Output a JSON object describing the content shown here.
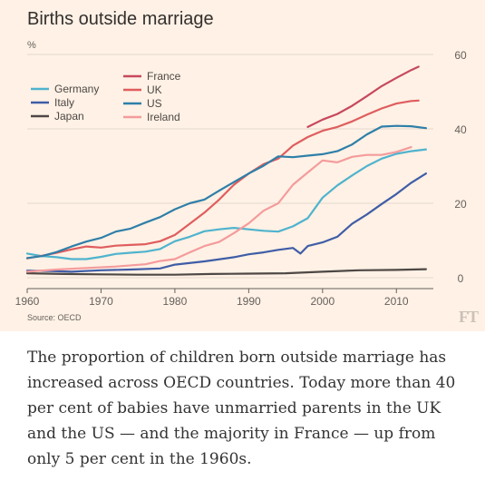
{
  "header": {
    "title": "Births outside marriage",
    "unit": "%"
  },
  "footer": {
    "source": "Source: OECD",
    "logo": "FT"
  },
  "caption": "The proportion of children born outside marriage has increased across OECD countries. Today more than 40 per cent of babies have unmarried parents in the UK and the US — and the majority in France — up from only 5 per cent in the 1960s.",
  "chart_data": {
    "type": "line",
    "title": "Births outside marriage",
    "ylabel": "%",
    "xlim": [
      1960,
      2015
    ],
    "ylim": [
      0,
      60
    ],
    "x_ticks": [
      1960,
      1970,
      1980,
      1990,
      2000,
      2010
    ],
    "y_ticks": [
      0,
      20,
      40,
      60
    ],
    "grid": true,
    "legend_position": "top-left",
    "series": [
      {
        "name": "Germany",
        "color": "#4fb3ce",
        "points": [
          [
            1960,
            6.5
          ],
          [
            1962,
            5.8
          ],
          [
            1964,
            5.5
          ],
          [
            1966,
            5.0
          ],
          [
            1968,
            5.0
          ],
          [
            1970,
            5.6
          ],
          [
            1972,
            6.4
          ],
          [
            1974,
            6.7
          ],
          [
            1976,
            7.0
          ],
          [
            1978,
            7.7
          ],
          [
            1980,
            9.8
          ],
          [
            1982,
            11.0
          ],
          [
            1984,
            12.5
          ],
          [
            1986,
            13.0
          ],
          [
            1988,
            13.4
          ],
          [
            1990,
            13.0
          ],
          [
            1992,
            12.6
          ],
          [
            1994,
            12.4
          ],
          [
            1996,
            13.8
          ],
          [
            1998,
            16.0
          ],
          [
            2000,
            21.5
          ],
          [
            2002,
            24.8
          ],
          [
            2004,
            27.5
          ],
          [
            2006,
            30.0
          ],
          [
            2008,
            32.0
          ],
          [
            2010,
            33.3
          ],
          [
            2012,
            34.0
          ],
          [
            2014,
            34.5
          ]
        ]
      },
      {
        "name": "Italy",
        "color": "#3f5da7",
        "points": [
          [
            1960,
            1.9
          ],
          [
            1963,
            1.8
          ],
          [
            1966,
            1.6
          ],
          [
            1970,
            2.0
          ],
          [
            1974,
            2.2
          ],
          [
            1978,
            2.5
          ],
          [
            1980,
            3.5
          ],
          [
            1984,
            4.4
          ],
          [
            1988,
            5.5
          ],
          [
            1990,
            6.3
          ],
          [
            1992,
            6.8
          ],
          [
            1994,
            7.5
          ],
          [
            1996,
            8.0
          ],
          [
            1997,
            6.5
          ],
          [
            1998,
            8.5
          ],
          [
            2000,
            9.5
          ],
          [
            2002,
            11.0
          ],
          [
            2004,
            14.5
          ],
          [
            2006,
            17.0
          ],
          [
            2008,
            19.8
          ],
          [
            2010,
            22.5
          ],
          [
            2012,
            25.5
          ],
          [
            2014,
            28.0
          ]
        ]
      },
      {
        "name": "Japan",
        "color": "#4d4845",
        "points": [
          [
            1960,
            1.2
          ],
          [
            1965,
            1.0
          ],
          [
            1970,
            0.9
          ],
          [
            1975,
            0.8
          ],
          [
            1980,
            0.8
          ],
          [
            1985,
            1.0
          ],
          [
            1990,
            1.1
          ],
          [
            1995,
            1.2
          ],
          [
            2000,
            1.6
          ],
          [
            2005,
            2.0
          ],
          [
            2010,
            2.1
          ],
          [
            2014,
            2.3
          ]
        ]
      },
      {
        "name": "France",
        "color": "#c7485e",
        "points": [
          [
            1998,
            40.5
          ],
          [
            2000,
            42.5
          ],
          [
            2002,
            44.0
          ],
          [
            2004,
            46.2
          ],
          [
            2006,
            48.8
          ],
          [
            2008,
            51.5
          ],
          [
            2010,
            53.7
          ],
          [
            2012,
            55.8
          ],
          [
            2013,
            56.7
          ]
        ]
      },
      {
        "name": "UK",
        "color": "#df5d5e",
        "points": [
          [
            1960,
            5.2
          ],
          [
            1962,
            5.9
          ],
          [
            1964,
            6.7
          ],
          [
            1966,
            7.6
          ],
          [
            1968,
            8.4
          ],
          [
            1970,
            8.1
          ],
          [
            1972,
            8.6
          ],
          [
            1974,
            8.8
          ],
          [
            1976,
            9.0
          ],
          [
            1978,
            9.8
          ],
          [
            1980,
            11.5
          ],
          [
            1982,
            14.5
          ],
          [
            1984,
            17.5
          ],
          [
            1986,
            21.0
          ],
          [
            1988,
            25.0
          ],
          [
            1990,
            28.0
          ],
          [
            1992,
            30.5
          ],
          [
            1994,
            32.0
          ],
          [
            1996,
            35.5
          ],
          [
            1998,
            37.8
          ],
          [
            2000,
            39.5
          ],
          [
            2002,
            40.5
          ],
          [
            2004,
            42.0
          ],
          [
            2006,
            43.8
          ],
          [
            2008,
            45.5
          ],
          [
            2010,
            46.8
          ],
          [
            2012,
            47.5
          ],
          [
            2013,
            47.6
          ]
        ]
      },
      {
        "name": "US",
        "color": "#2e7fa9",
        "points": [
          [
            1960,
            5.3
          ],
          [
            1962,
            5.8
          ],
          [
            1964,
            6.9
          ],
          [
            1966,
            8.4
          ],
          [
            1968,
            9.7
          ],
          [
            1970,
            10.7
          ],
          [
            1972,
            12.4
          ],
          [
            1974,
            13.2
          ],
          [
            1976,
            14.8
          ],
          [
            1978,
            16.3
          ],
          [
            1980,
            18.4
          ],
          [
            1982,
            20.0
          ],
          [
            1984,
            21.0
          ],
          [
            1986,
            23.4
          ],
          [
            1988,
            25.7
          ],
          [
            1990,
            28.0
          ],
          [
            1992,
            30.1
          ],
          [
            1994,
            32.6
          ],
          [
            1996,
            32.4
          ],
          [
            1998,
            32.8
          ],
          [
            2000,
            33.2
          ],
          [
            2002,
            34.0
          ],
          [
            2004,
            35.8
          ],
          [
            2006,
            38.5
          ],
          [
            2008,
            40.6
          ],
          [
            2010,
            40.8
          ],
          [
            2012,
            40.7
          ],
          [
            2014,
            40.2
          ]
        ]
      },
      {
        "name": "Ireland",
        "color": "#f49b9c",
        "points": [
          [
            1960,
            1.6
          ],
          [
            1964,
            2.2
          ],
          [
            1968,
            2.6
          ],
          [
            1972,
            3.0
          ],
          [
            1976,
            3.6
          ],
          [
            1978,
            4.5
          ],
          [
            1980,
            5.0
          ],
          [
            1982,
            6.8
          ],
          [
            1984,
            8.5
          ],
          [
            1986,
            9.6
          ],
          [
            1988,
            12.0
          ],
          [
            1990,
            14.6
          ],
          [
            1992,
            18.0
          ],
          [
            1994,
            20.0
          ],
          [
            1996,
            25.0
          ],
          [
            1998,
            28.3
          ],
          [
            2000,
            31.5
          ],
          [
            2002,
            31.0
          ],
          [
            2004,
            32.5
          ],
          [
            2006,
            33.0
          ],
          [
            2008,
            33.0
          ],
          [
            2010,
            33.8
          ],
          [
            2012,
            35.1
          ]
        ]
      }
    ],
    "legend": {
      "left": [
        "Germany",
        "Italy",
        "Japan"
      ],
      "right": [
        "France",
        "UK",
        "US",
        "Ireland"
      ]
    }
  }
}
